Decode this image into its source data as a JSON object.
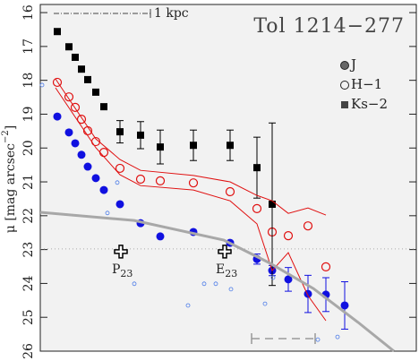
{
  "chart_data": {
    "type": "scatter",
    "title": "Tol 1214−277",
    "y_label": {
      "main": "μ [mag arcsec",
      "sup": "−2",
      "end": "]"
    },
    "xlim": [
      0,
      42
    ],
    "ylim": [
      15.76,
      26
    ],
    "y_inverted": true,
    "yticks": [
      16,
      17,
      18,
      19,
      20,
      21,
      22,
      23,
      24,
      25,
      26
    ],
    "hline": 22.98,
    "scale_bar_label": "1 kpc",
    "points": [
      {
        "label": "P",
        "sub": "23",
        "x": 9.0,
        "y": 23.06
      },
      {
        "label": "E",
        "sub": "23",
        "x": 20.6,
        "y": 23.06
      }
    ],
    "series": [
      {
        "name": "J",
        "color": "#1010e0",
        "marker": "filled-circle",
        "x": [
          1.9,
          3.2,
          3.9,
          4.6,
          5.3,
          6.2,
          7.1,
          8.9,
          11.2,
          13.4,
          17.1,
          21.2,
          24.2,
          25.9,
          27.7,
          29.9,
          31.9,
          34.0
        ],
        "values": [
          19.07,
          19.54,
          19.86,
          20.2,
          20.55,
          20.89,
          21.24,
          21.66,
          22.22,
          22.61,
          22.48,
          22.8,
          23.28,
          23.62,
          23.88,
          24.31,
          24.33,
          24.65
        ],
        "errors": [
          null,
          null,
          null,
          null,
          null,
          null,
          null,
          null,
          null,
          null,
          null,
          null,
          0.15,
          0.15,
          0.35,
          0.55,
          0.5,
          0.7
        ]
      },
      {
        "name": "H−1",
        "color": "#e01010",
        "marker": "open-circle",
        "x": [
          1.9,
          3.2,
          3.9,
          4.6,
          5.3,
          6.2,
          7.1,
          8.9,
          11.2,
          13.4,
          17.1,
          21.2,
          24.2,
          25.9,
          27.7,
          29.9,
          31.9
        ],
        "values": [
          18.06,
          18.49,
          18.8,
          19.15,
          19.49,
          19.81,
          20.13,
          20.6,
          20.92,
          20.97,
          21.03,
          21.29,
          21.79,
          22.48,
          22.59,
          22.3,
          23.51
        ]
      },
      {
        "name": "Ks−2",
        "color": "#000000",
        "marker": "square",
        "x": [
          1.9,
          3.2,
          3.9,
          4.6,
          5.3,
          6.2,
          7.1,
          8.9,
          11.2,
          13.4,
          17.1,
          21.2,
          24.2,
          25.9
        ],
        "values": [
          16.56,
          17.01,
          17.32,
          17.67,
          17.98,
          18.35,
          18.78,
          19.52,
          19.62,
          19.97,
          19.92,
          19.92,
          20.58,
          21.66
        ],
        "errors": [
          null,
          null,
          null,
          null,
          null,
          null,
          null,
          0.33,
          0.4,
          0.5,
          0.45,
          0.45,
          0.9,
          2.4
        ]
      },
      {
        "color": "#4a7ae8",
        "marker": "small-open-circle",
        "x": [
          0.2,
          7.5,
          8.6,
          10.5,
          16.5,
          18.3,
          19.6,
          21.3,
          25.1,
          26.0,
          33.2,
          31.0
        ],
        "values": [
          18.14,
          21.92,
          21.02,
          24.01,
          24.65,
          24.01,
          24.01,
          24.17,
          24.6,
          23.83,
          25.58,
          25.66
        ]
      },
      {
        "color": "#e01010",
        "marker": "line",
        "x": [
          1.7,
          6.2,
          8.9,
          11.2,
          17.1,
          21.2,
          24.2,
          25.9,
          27.7,
          29.9,
          31.9
        ],
        "values": [
          17.96,
          19.73,
          20.34,
          20.66,
          20.81,
          21.0,
          21.4,
          21.56,
          21.93,
          21.77,
          21.98
        ]
      },
      {
        "color": "#e01010",
        "marker": "line",
        "x": [
          1.7,
          6.2,
          8.9,
          11.2,
          17.1,
          21.2,
          24.2,
          25.9,
          27.7,
          29.9,
          31.9
        ],
        "values": [
          18.22,
          19.99,
          20.79,
          21.11,
          21.24,
          21.56,
          22.24,
          23.62,
          23.09,
          24.36,
          25.1
        ]
      },
      {
        "color": "#a8a8a8",
        "marker": "thick-line",
        "x": [
          0,
          10.5,
          20.5,
          25.5,
          30.5,
          35.5,
          39.5
        ],
        "values": [
          21.9,
          22.14,
          22.72,
          23.38,
          24.15,
          25.15,
          26.0
        ]
      }
    ]
  }
}
